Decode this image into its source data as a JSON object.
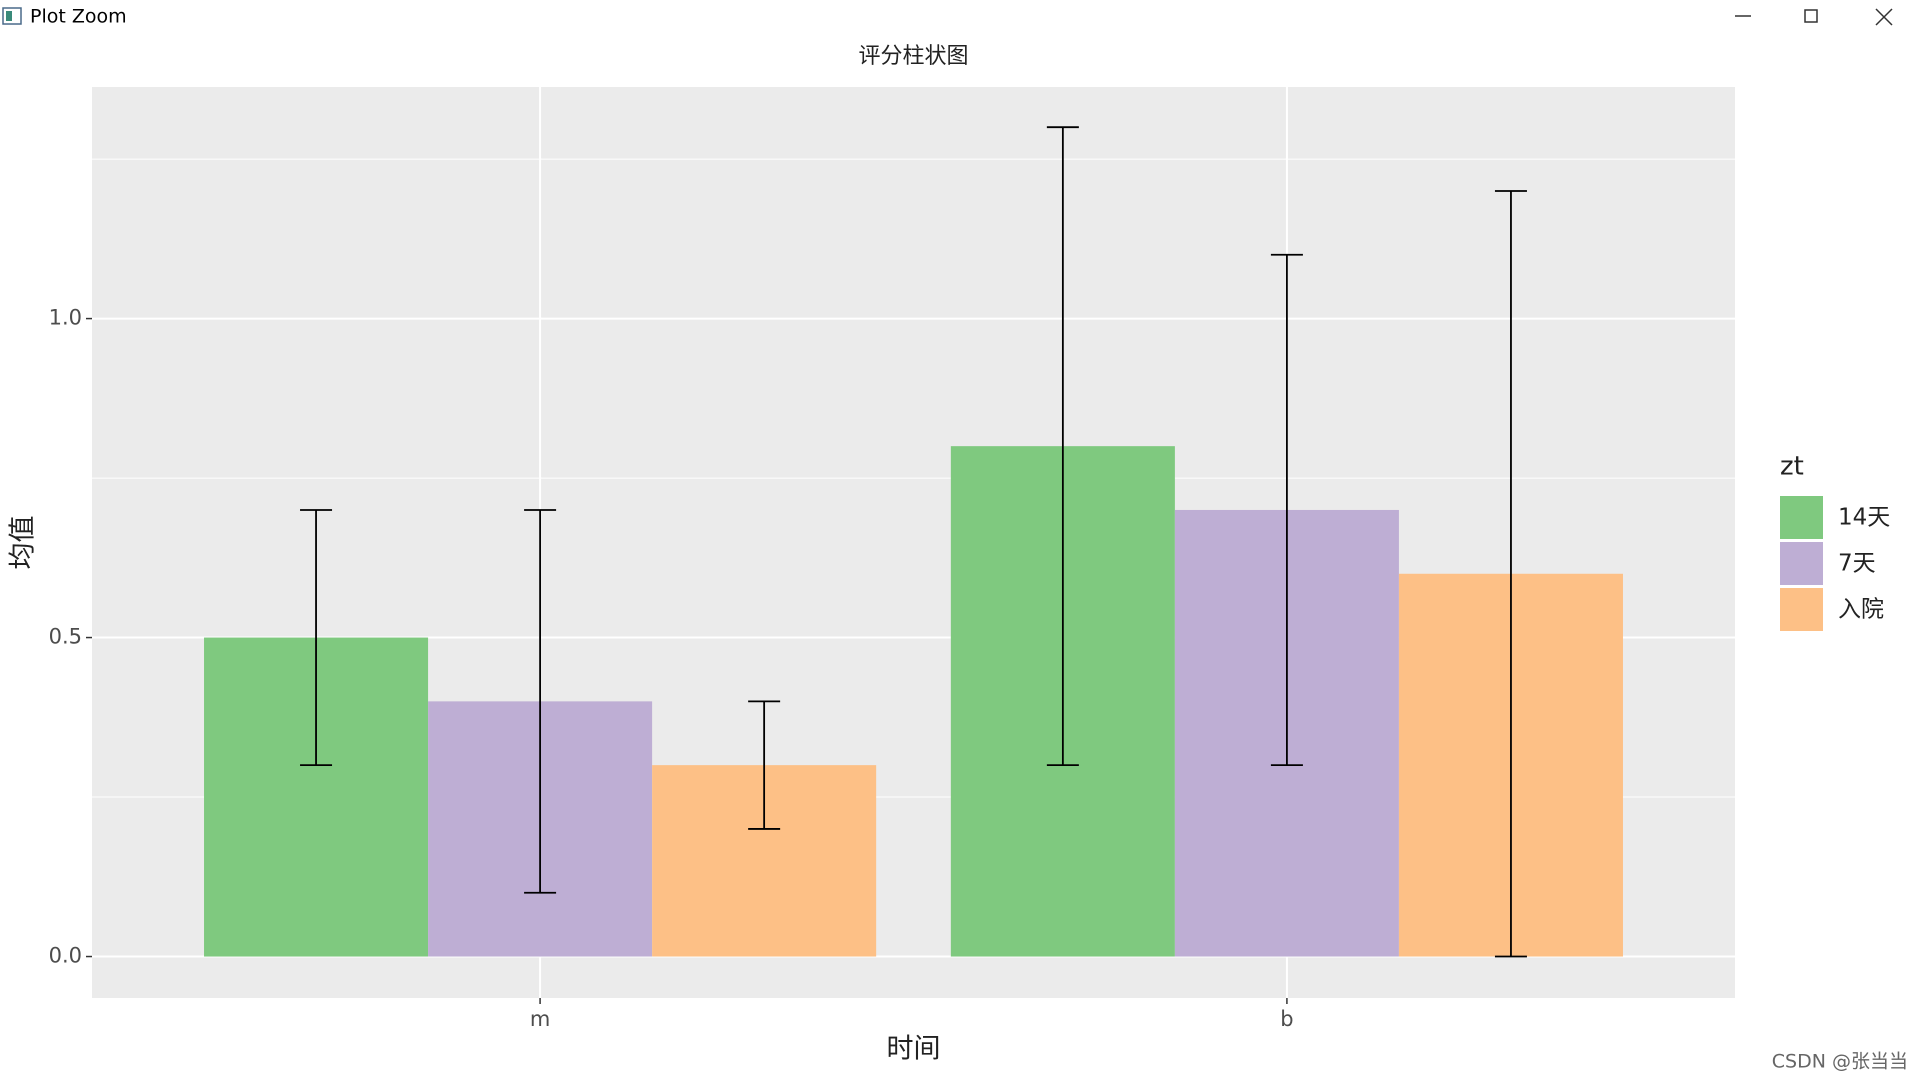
{
  "window": {
    "title": "Plot Zoom"
  },
  "watermark": "CSDN @张当当",
  "chart_data": {
    "type": "bar",
    "title": "评分柱状图",
    "x_label": "时间",
    "y_label": "均值",
    "categories": [
      "m",
      "b"
    ],
    "series": [
      {
        "name": "14天",
        "color": "#7fc97f",
        "values": [
          0.5,
          0.8
        ],
        "errors": [
          0.2,
          0.5
        ]
      },
      {
        "name": "7天",
        "color": "#beaed4",
        "values": [
          0.4,
          0.7
        ],
        "errors": [
          0.3,
          0.4
        ]
      },
      {
        "name": "入院",
        "color": "#fdc086",
        "values": [
          0.3,
          0.6
        ],
        "errors": [
          0.1,
          0.6
        ]
      }
    ],
    "legend_title": "zt",
    "legend": "right",
    "ylim": [
      -0.065,
      1.363
    ],
    "yticks": [
      {
        "value": 0,
        "label": "0.0"
      },
      0.5,
      {
        "value": 1,
        "label": "1.0"
      }
    ],
    "y_minor_ticks": [
      0.25,
      0.75,
      1.25
    ],
    "grid": true
  }
}
